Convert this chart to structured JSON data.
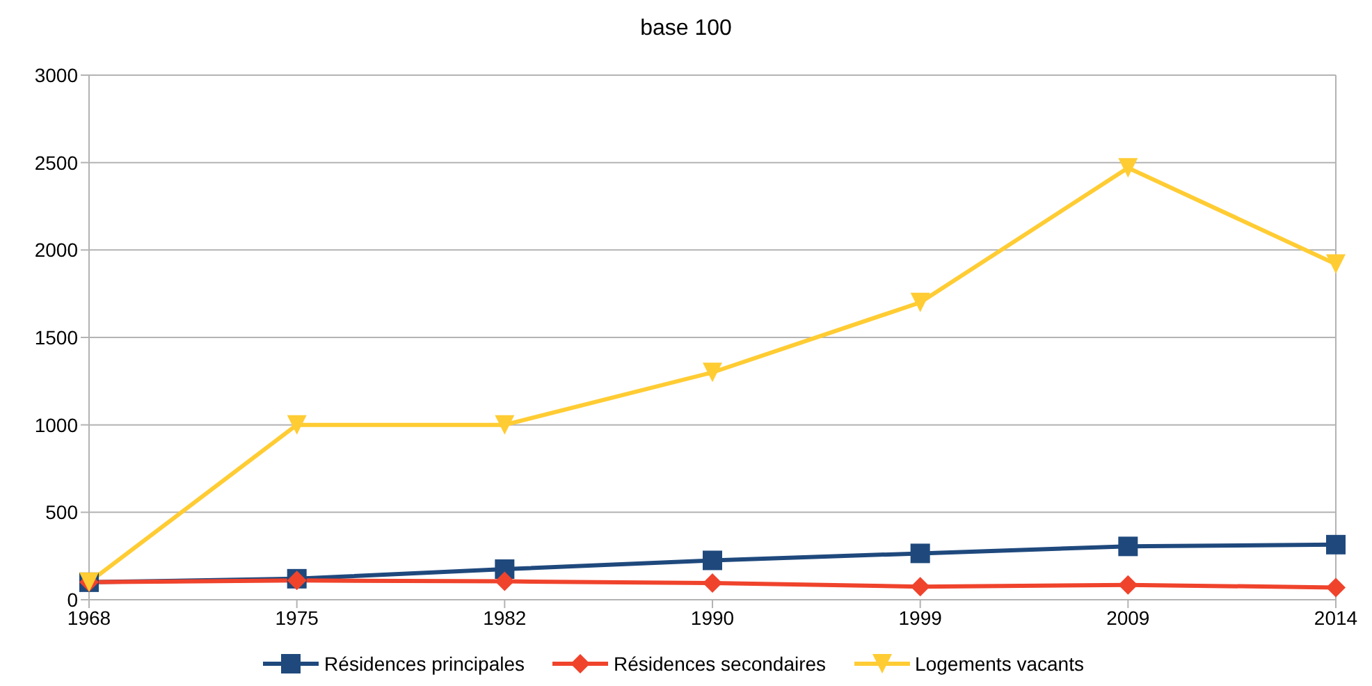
{
  "chart_data": {
    "type": "line",
    "title": "base 100",
    "categories": [
      "1968",
      "1975",
      "1982",
      "1990",
      "1999",
      "2009",
      "2014"
    ],
    "series": [
      {
        "name": "Résidences principales",
        "color": "#1f497d",
        "marker": "square",
        "values": [
          100,
          120,
          175,
          225,
          265,
          305,
          315
        ]
      },
      {
        "name": "Résidences secondaires",
        "color": "#f0432c",
        "marker": "diamond",
        "values": [
          100,
          110,
          105,
          95,
          75,
          85,
          70
        ]
      },
      {
        "name": "Logements vacants",
        "color": "#ffcc33",
        "marker": "triangle",
        "values": [
          100,
          1000,
          1000,
          1300,
          1700,
          2470,
          1920
        ]
      }
    ],
    "ylim": [
      0,
      3000
    ],
    "yticks": [
      0,
      500,
      1000,
      1500,
      2000,
      2500,
      3000
    ],
    "grid": "y",
    "legend": "bottom"
  }
}
